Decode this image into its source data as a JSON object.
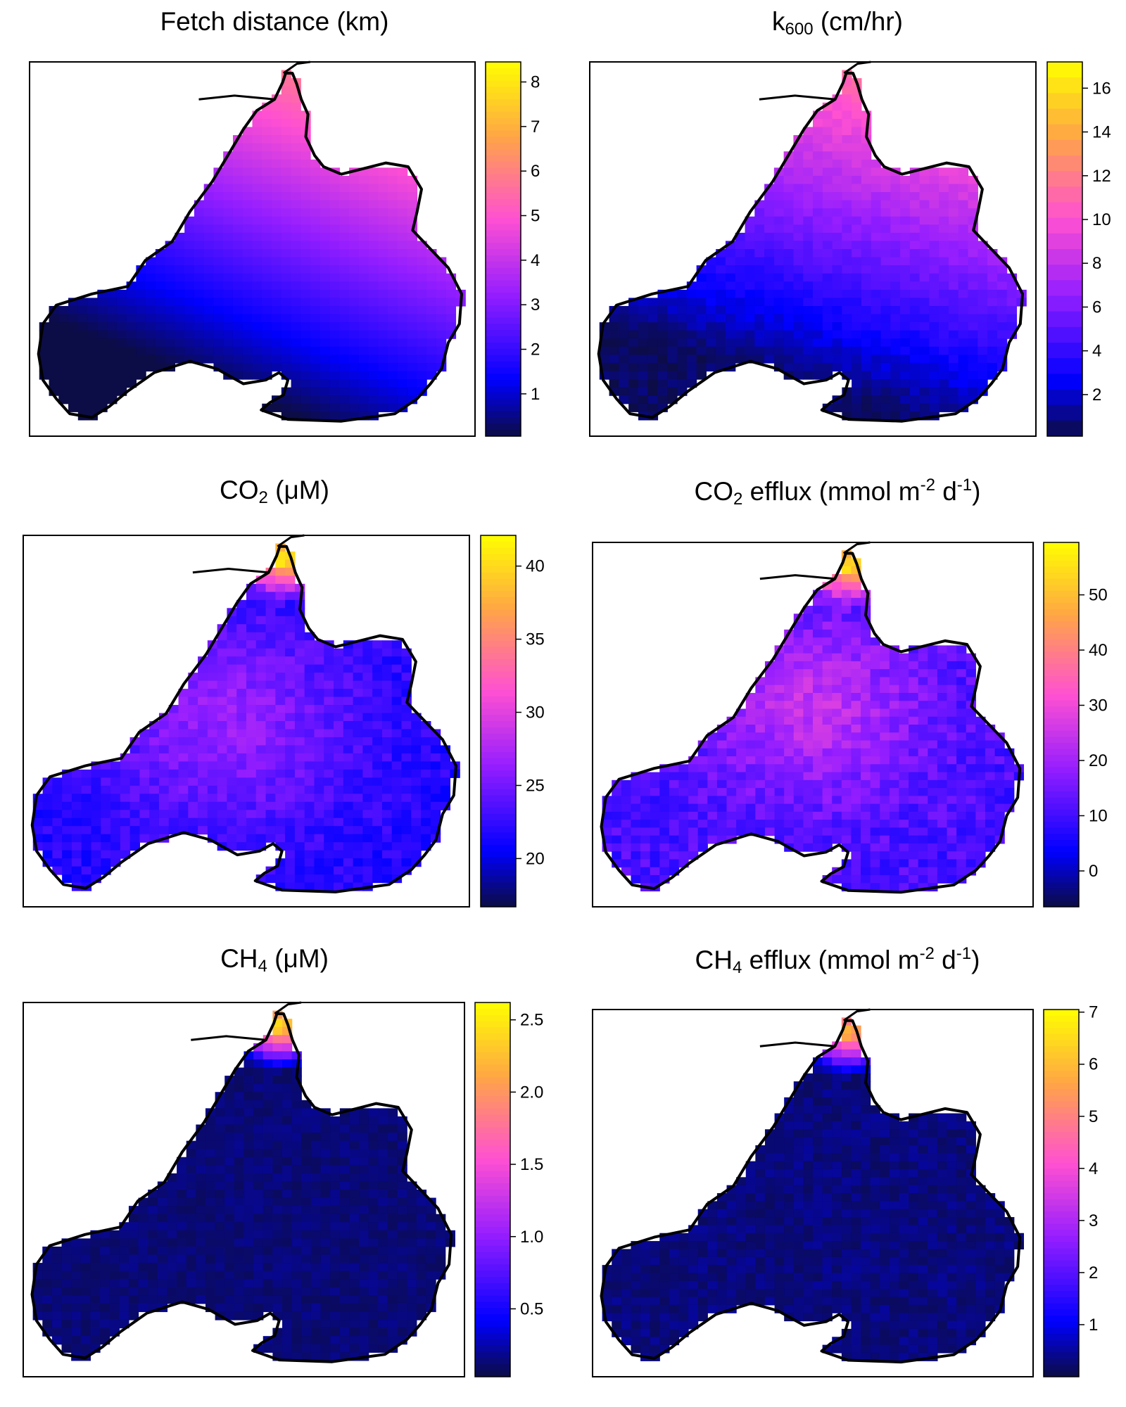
{
  "panels": [
    {
      "title": {
        "main": "Fetch distance (km)",
        "sub": "",
        "tail": "",
        "sup1": "",
        "mid": "",
        "sup2": "",
        "end": ""
      }
    },
    {
      "title": {
        "main": "k",
        "sub": "600",
        "tail": " (cm/hr)",
        "sup1": "",
        "mid": "",
        "sup2": "",
        "end": ""
      }
    },
    {
      "title": {
        "main": "CO",
        "sub": "2",
        "tail": " (μM)",
        "sup1": "",
        "mid": "",
        "sup2": "",
        "end": ""
      }
    },
    {
      "title": {
        "main": "CO",
        "sub": "2",
        "tail": " efflux (mmol m",
        "sup1": "-2",
        "mid": " d",
        "sup2": "-1",
        "end": ")"
      }
    },
    {
      "title": {
        "main": "CH",
        "sub": "4",
        "tail": " (μM)",
        "sup1": "",
        "mid": "",
        "sup2": "",
        "end": ""
      }
    },
    {
      "title": {
        "main": "CH",
        "sub": "4",
        "tail": " efflux (mmol m",
        "sup1": "-2",
        "mid": " d",
        "sup2": "-1",
        "end": ")"
      }
    }
  ],
  "chart_data": [
    {
      "type": "heatmap",
      "title": "Fetch distance (km)",
      "colorbar": {
        "range": [
          0.05,
          8.45
        ],
        "ticks": [
          1,
          2,
          3,
          4,
          5,
          6,
          7,
          8
        ],
        "tick_labels": [
          "1",
          "2",
          "3",
          "4",
          "5",
          "6",
          "7",
          "8"
        ]
      },
      "field": {
        "kind": "fetch",
        "min": 0.1,
        "max": 8.3
      }
    },
    {
      "type": "heatmap",
      "title": "k600 (cm/hr)",
      "colorbar": {
        "range": [
          0.1,
          17.2
        ],
        "ticks": [
          2,
          4,
          6,
          8,
          10,
          12,
          14,
          16
        ],
        "tick_labels": [
          "2",
          "4",
          "6",
          "8",
          "10",
          "12",
          "14",
          "16"
        ],
        "discrete_steps": 24
      },
      "field": {
        "kind": "k600",
        "min": 12.5,
        "max": 17
      }
    },
    {
      "type": "heatmap",
      "title": "CO2 (μM)",
      "colorbar": {
        "range": [
          16.7,
          42.1
        ],
        "ticks": [
          20,
          25,
          30,
          35,
          40
        ],
        "tick_labels": [
          "20",
          "25",
          "30",
          "35",
          "40"
        ]
      },
      "field": {
        "kind": "co2",
        "min": 21,
        "max": 42
      }
    },
    {
      "type": "heatmap",
      "title": "CO2 efflux (mmol m-2 d-1)",
      "colorbar": {
        "range": [
          -6.5,
          59.5
        ],
        "ticks": [
          0,
          10,
          20,
          30,
          40,
          50
        ],
        "tick_labels": [
          "0",
          "10",
          "20",
          "30",
          "40",
          "50"
        ]
      },
      "field": {
        "kind": "co2flux",
        "min": 4,
        "max": 59
      }
    },
    {
      "type": "heatmap",
      "title": "CH4 (μM)",
      "colorbar": {
        "range": [
          0.03,
          2.62
        ],
        "ticks": [
          0.5,
          1.0,
          1.5,
          2.0,
          2.5
        ],
        "tick_labels": [
          "0.5",
          "1.0",
          "1.5",
          "2.0",
          "2.5"
        ]
      },
      "field": {
        "kind": "ch4",
        "min": 0.1,
        "max": 2.6
      }
    },
    {
      "type": "heatmap",
      "title": "CH4 efflux (mmol m-2 d-1)",
      "colorbar": {
        "range": [
          0.0,
          7.05
        ],
        "ticks": [
          1,
          2,
          3,
          4,
          5,
          6,
          7
        ],
        "tick_labels": [
          "1",
          "2",
          "3",
          "4",
          "5",
          "6",
          "7"
        ]
      },
      "field": {
        "kind": "ch4flux",
        "min": 0.2,
        "max": 7.0
      }
    }
  ]
}
